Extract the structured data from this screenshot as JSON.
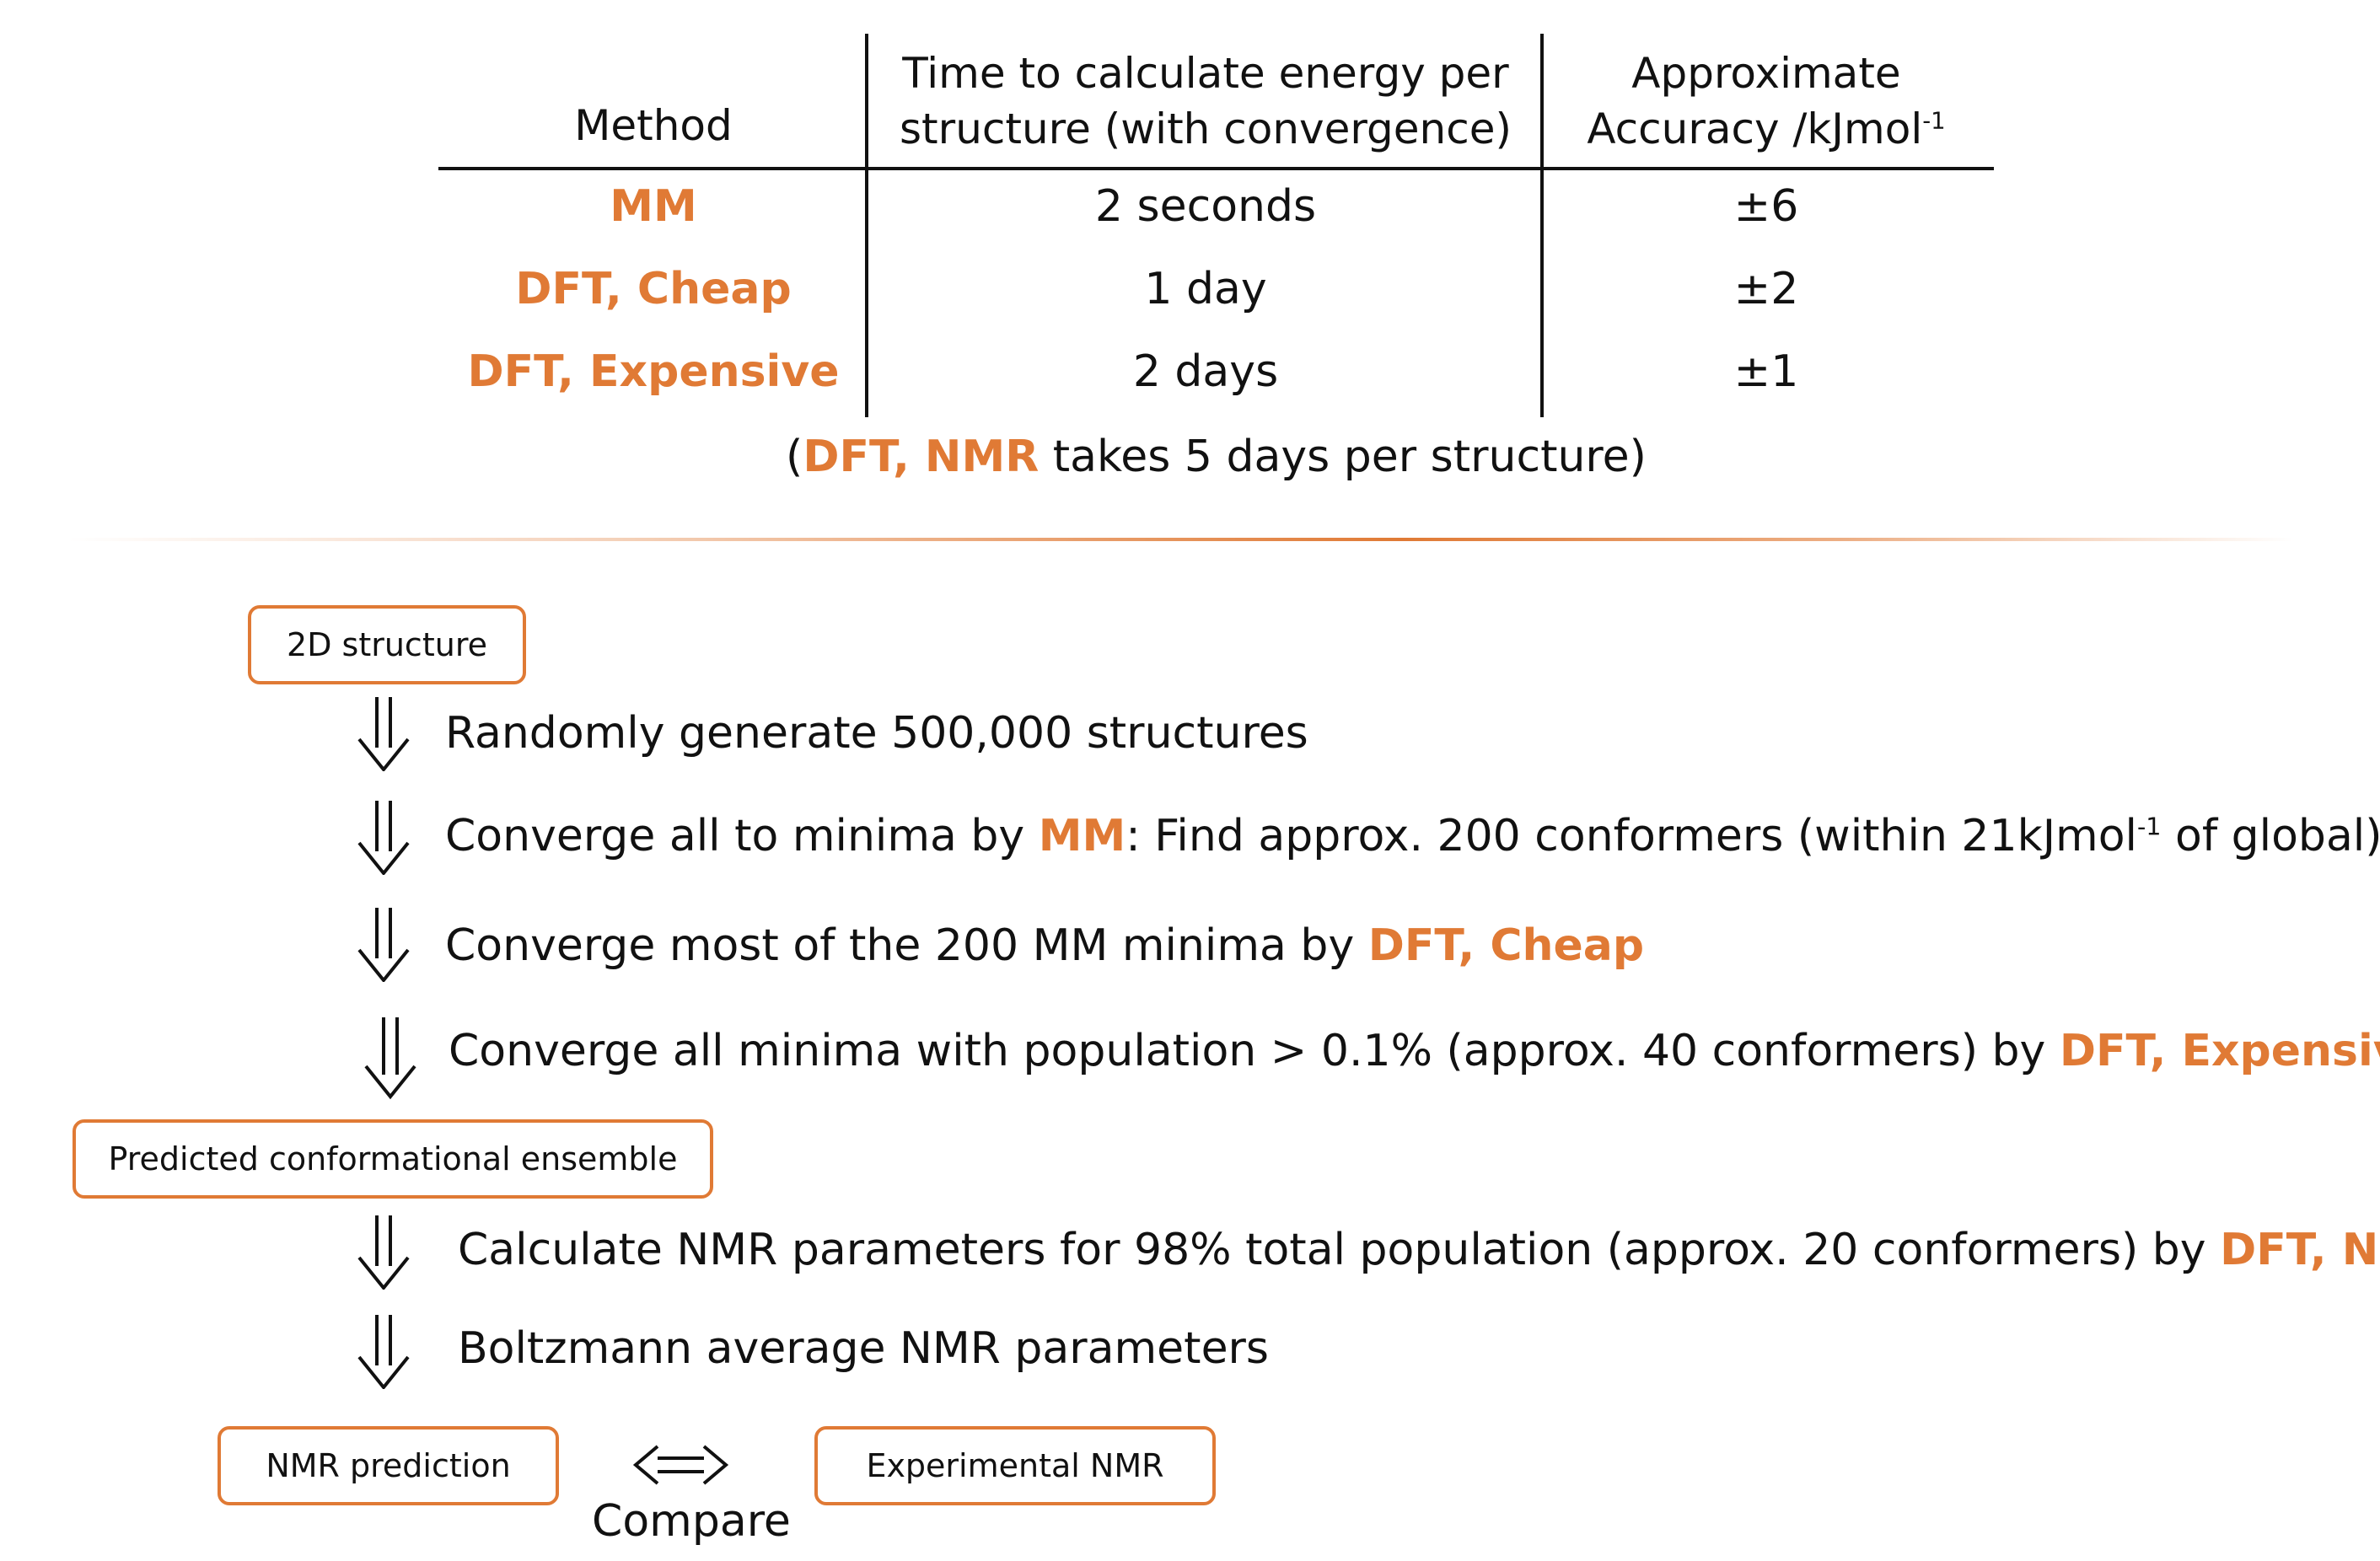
{
  "table": {
    "headers": {
      "method": "Method",
      "time_line1": "Time to calculate energy per",
      "time_line2": "structure (with convergence)",
      "acc_line1": "Approximate",
      "acc_line2": "Accuracy /kJmol",
      "acc_sup": "-1"
    },
    "rows": [
      {
        "method": "MM",
        "time": "2 seconds",
        "accuracy": "±6"
      },
      {
        "method": "DFT, Cheap",
        "time": "1 day",
        "accuracy": "±2"
      },
      {
        "method": "DFT, Expensive",
        "time": "2 days",
        "accuracy": "±1"
      }
    ],
    "note": {
      "open": "(",
      "highlight": "DFT, NMR",
      "rest": " takes 5 days per structure)"
    }
  },
  "flow": {
    "start_box": "2D structure",
    "step1": "Randomly generate 500,000 structures",
    "step2": {
      "pre": "Converge all to minima by ",
      "hl": "MM",
      "mid": ": Find approx. 200 conformers (within 21kJmol",
      "sup": "-1",
      "post": " of global)"
    },
    "step3": {
      "pre": "Converge most of the 200 MM minima by ",
      "hl": "DFT, Cheap"
    },
    "step4": {
      "pre": "Converge all minima with population > 0.1% (approx. 40 conformers) by ",
      "hl": "DFT, Expensive"
    },
    "ensemble_box": "Predicted conformational ensemble",
    "step5": {
      "pre": "Calculate NMR parameters for 98% total population (approx. 20 conformers) by ",
      "hl": "DFT, NMR"
    },
    "step6": "Boltzmann average NMR parameters",
    "prediction_box": "NMR prediction",
    "experimental_box": "Experimental NMR",
    "compare_label": "Compare"
  },
  "colors": {
    "accent": "#E07A35",
    "text": "#111111"
  }
}
